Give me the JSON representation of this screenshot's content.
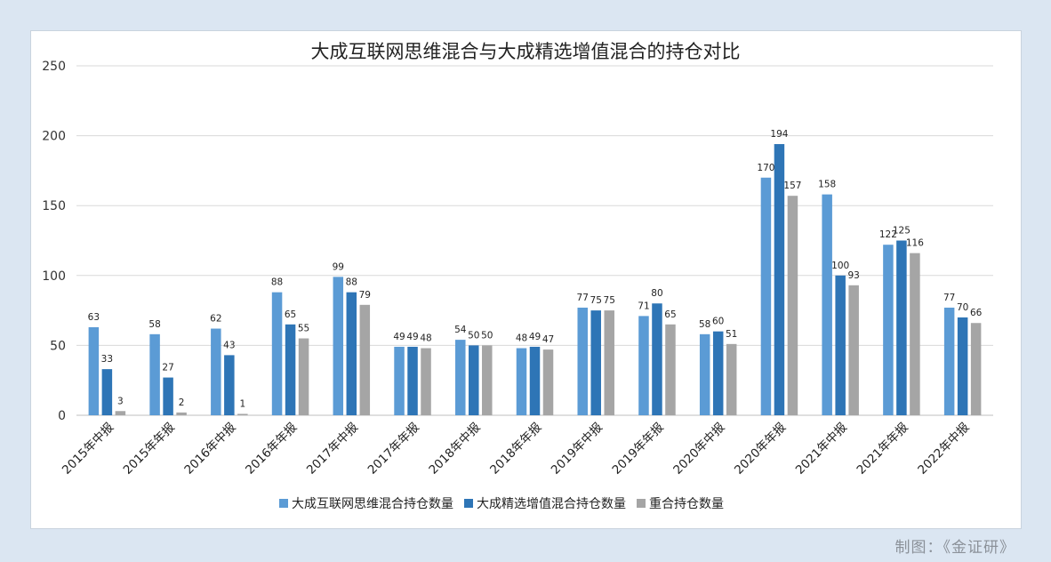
{
  "chart_data": {
    "type": "bar",
    "title": "大成互联网思维混合与大成精选增值混合的持仓对比",
    "xlabel": "",
    "ylabel": "",
    "ylim": [
      0,
      250
    ],
    "yticks": [
      0,
      50,
      100,
      150,
      200,
      250
    ],
    "grid": true,
    "legend_position": "bottom",
    "categories": [
      "2015年中报",
      "2015年年报",
      "2016年中报",
      "2016年年报",
      "2017年中报",
      "2017年年报",
      "2018年中报",
      "2018年年报",
      "2019年中报",
      "2019年年报",
      "2020年中报",
      "2020年年报",
      "2021年中报",
      "2021年年报",
      "2022年中报"
    ],
    "series": [
      {
        "name": "大成互联网思维混合持仓数量",
        "color": "#5b9bd5",
        "values": [
          63,
          58,
          62,
          88,
          99,
          49,
          54,
          48,
          77,
          71,
          58,
          170,
          158,
          122,
          77
        ]
      },
      {
        "name": "大成精选增值混合持仓数量",
        "color": "#2e75b6",
        "values": [
          33,
          27,
          43,
          65,
          88,
          49,
          50,
          49,
          75,
          80,
          60,
          194,
          100,
          125,
          70
        ]
      },
      {
        "name": "重合持仓数量",
        "color": "#a5a5a5",
        "values": [
          3,
          2,
          1,
          55,
          79,
          48,
          50,
          47,
          75,
          65,
          51,
          157,
          93,
          116,
          66
        ]
      }
    ]
  },
  "source_note": "制图：《金证研》"
}
